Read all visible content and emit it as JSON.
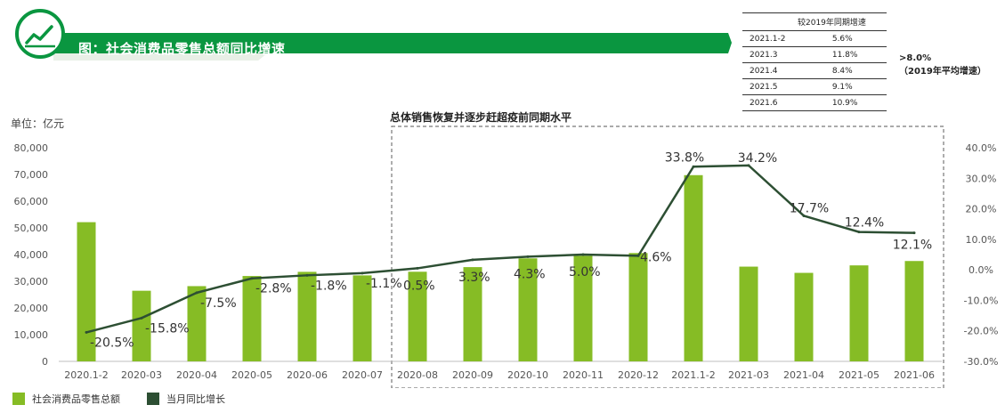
{
  "header": {
    "title": "图：社会消费品零售总额同比增速"
  },
  "subtitle": "总体销售恢复并逐步赶超疫前同期水平",
  "unit_label": "单位：亿元",
  "ref_table": {
    "header": "较2019年同期增速",
    "rows": [
      {
        "period": "2021.1-2",
        "value": "5.6%"
      },
      {
        "period": "2021.3",
        "value": "11.8%"
      },
      {
        "period": "2021.4",
        "value": "8.4%"
      },
      {
        "period": "2021.5",
        "value": "9.1%"
      },
      {
        "period": "2021.6",
        "value": "10.9%"
      }
    ]
  },
  "ref_note": {
    "line1": ">8.0%",
    "line2": "（2019年平均增速）"
  },
  "legend": {
    "bar_label": "社会消费品零售总额",
    "line_label": "当月同比增长"
  },
  "colors": {
    "brand_green": "#0a9640",
    "bar_green": "#86bc25",
    "line_green": "#2d4f33",
    "axis_text": "#555555",
    "grid": "#d9d9d9"
  },
  "chart_data": {
    "type": "bar",
    "categories": [
      "2020.1-2",
      "2020-03",
      "2020-04",
      "2020-05",
      "2020-06",
      "2020-07",
      "2020-08",
      "2020-09",
      "2020-10",
      "2020-11",
      "2020-12",
      "2021.1-2",
      "2021-03",
      "2021-04",
      "2021-05",
      "2021-06"
    ],
    "series": [
      {
        "name": "社会消费品零售总额",
        "type": "bar",
        "axis": "left",
        "values": [
          52130,
          26450,
          28180,
          31970,
          33530,
          32200,
          33570,
          35300,
          38580,
          39510,
          40570,
          69740,
          35480,
          33150,
          35950,
          37590
        ]
      },
      {
        "name": "当月同比增长",
        "type": "line",
        "axis": "right",
        "values": [
          -20.5,
          -15.8,
          -7.5,
          -2.8,
          -1.8,
          -1.1,
          0.5,
          3.3,
          4.3,
          5.0,
          4.6,
          33.8,
          34.2,
          17.7,
          12.4,
          12.1
        ],
        "labels": [
          "-20.5%",
          "-15.8%",
          "-7.5%",
          "-2.8%",
          "-1.8%",
          "-1.1%",
          "0.5%",
          "3.3%",
          "4.3%",
          "5.0%",
          "4.6%",
          "33.8%",
          "34.2%",
          "17.7%",
          "12.4%",
          "12.1%"
        ]
      }
    ],
    "y_left": {
      "min": 0,
      "max": 80000,
      "ticks": [
        "0",
        "10,000",
        "20,000",
        "30,000",
        "40,000",
        "50,000",
        "60,000",
        "70,000",
        "80,000"
      ]
    },
    "y_right": {
      "min": -30,
      "max": 40,
      "ticks": [
        "-30.0%",
        "-20.0%",
        "-10.0%",
        "0.0%",
        "10.0%",
        "20.0%",
        "30.0%",
        "40.0%"
      ]
    },
    "highlight_range": [
      "2020-08",
      "2021-06"
    ]
  }
}
